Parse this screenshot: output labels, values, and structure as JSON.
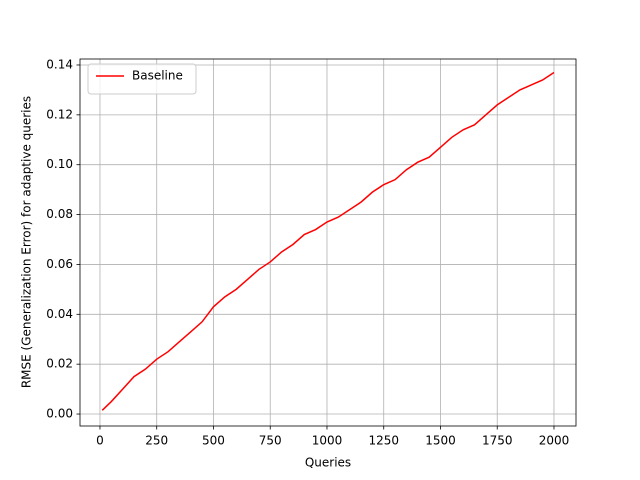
{
  "chart_data": {
    "type": "line",
    "xlabel": "Queries",
    "ylabel": "RMSE (Generalization Error) for adaptive queries",
    "x": [
      10,
      50,
      100,
      150,
      200,
      250,
      300,
      350,
      400,
      450,
      500,
      550,
      600,
      650,
      700,
      750,
      800,
      850,
      900,
      950,
      1000,
      1050,
      1100,
      1150,
      1200,
      1250,
      1300,
      1350,
      1400,
      1450,
      1500,
      1550,
      1600,
      1650,
      1700,
      1750,
      1800,
      1850,
      1900,
      1950,
      2000
    ],
    "series": [
      {
        "name": "Baseline",
        "color": "#ff0000",
        "values": [
          0.0015,
          0.005,
          0.01,
          0.015,
          0.018,
          0.022,
          0.025,
          0.029,
          0.033,
          0.037,
          0.043,
          0.047,
          0.05,
          0.054,
          0.058,
          0.061,
          0.065,
          0.068,
          0.072,
          0.074,
          0.077,
          0.079,
          0.082,
          0.085,
          0.089,
          0.092,
          0.094,
          0.098,
          0.101,
          0.103,
          0.107,
          0.111,
          0.114,
          0.116,
          0.12,
          0.124,
          0.127,
          0.13,
          0.132,
          0.134,
          0.137
        ]
      }
    ],
    "xlim": [
      -88,
      2097
    ],
    "ylim": [
      -0.0048,
      0.1424
    ],
    "xticks": [
      0,
      250,
      500,
      750,
      1000,
      1250,
      1500,
      1750,
      2000
    ],
    "yticks": [
      {
        "value": 0,
        "label": "0.00"
      },
      {
        "value": 0.02,
        "label": "0.02"
      },
      {
        "value": 0.04,
        "label": "0.04"
      },
      {
        "value": 0.06,
        "label": "0.06"
      },
      {
        "value": 0.08,
        "label": "0.08"
      },
      {
        "value": 0.1,
        "label": "0.10"
      },
      {
        "value": 0.12,
        "label": "0.12"
      },
      {
        "value": 0.14,
        "label": "0.14"
      }
    ],
    "grid": true,
    "legend": "upper left"
  }
}
